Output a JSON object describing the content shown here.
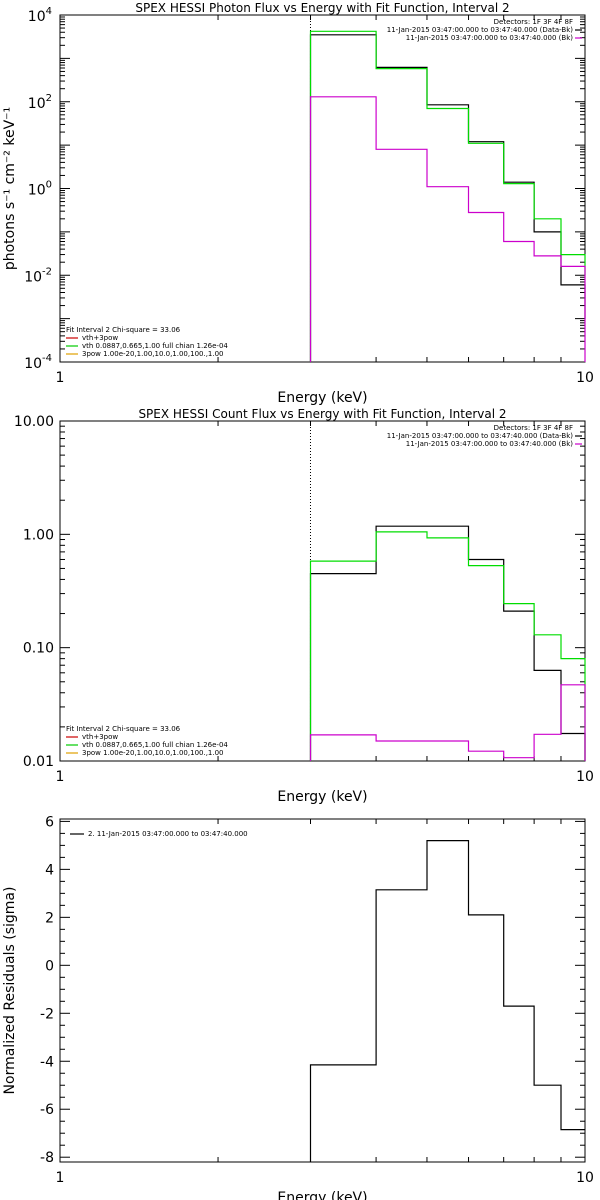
{
  "chart_data": [
    {
      "type": "line",
      "title": "SPEX HESSI Photon Flux vs Energy with Fit Function, Interval 2",
      "xlabel": "Energy (keV)",
      "ylabel": "photons s⁻¹ cm⁻² keV⁻¹",
      "xscale": "log",
      "yscale": "log",
      "xlim": [
        1,
        10
      ],
      "ylim": [
        0.0001,
        10000
      ],
      "x_ticks": [
        {
          "v": 1,
          "label": "1"
        },
        {
          "v": 10,
          "label": "10"
        }
      ],
      "y_ticks": [
        {
          "v": 0.0001,
          "b": "10",
          "e": "-4"
        },
        {
          "v": 0.01,
          "b": "10",
          "e": "-2"
        },
        {
          "v": 1,
          "b": "10",
          "e": "0"
        },
        {
          "v": 100,
          "b": "10",
          "e": "2"
        },
        {
          "v": 10000,
          "b": "10",
          "e": "4"
        }
      ],
      "marker_line_x": 3.0,
      "info_top_right": [
        {
          "text": "Detectors: 1F 3F 4F 8F",
          "color": "#000000"
        },
        {
          "text": "11-Jan-2015 03:47:00.000 to 03:47:40.000 (Data-Bk)",
          "color": "#000000"
        },
        {
          "text": "11-Jan-2015 03:47:00.000 to 03:47:40.000 (Bk)",
          "color": "#cc00cc"
        }
      ],
      "legend_bottom_left": [
        {
          "text": "Fit Interval 2   Chi-square = 33.06",
          "color": "#000000"
        },
        {
          "text": "vth+3pow",
          "color": "#cc0000"
        },
        {
          "text": "vth 0.0887,0.665,1.00  full chian 1.26e-04",
          "color": "#00cc00"
        },
        {
          "text": "3pow 1.00e-20,1.00,10.0,1.00,100.,1.00",
          "color": "#e0a000"
        }
      ],
      "series": [
        {
          "color": "#000000",
          "edges": [
            3,
            4,
            5,
            6,
            7,
            8,
            9,
            10
          ],
          "values": [
            3500,
            620,
            85,
            12,
            1.4,
            0.1,
            0.006
          ],
          "drop_end": 0.001
        },
        {
          "color": "#00dd00",
          "edges": [
            3,
            4,
            5,
            6,
            7,
            8,
            9,
            10
          ],
          "values": [
            4200,
            580,
            70,
            11,
            1.3,
            0.2,
            0.03
          ],
          "drop_end": 0.01
        },
        {
          "color": "#cc00cc",
          "edges": [
            3,
            4,
            5,
            6,
            7,
            8,
            9,
            10
          ],
          "values": [
            130,
            8,
            1.1,
            0.28,
            0.06,
            0.028,
            0.016
          ],
          "drop_end": 0.0001
        }
      ]
    },
    {
      "type": "line",
      "title": "SPEX HESSI Count Flux vs Energy with Fit Function, Interval 2",
      "xlabel": "Energy (keV)",
      "ylabel": "",
      "xscale": "log",
      "yscale": "log",
      "xlim": [
        1,
        10
      ],
      "ylim": [
        0.01,
        10
      ],
      "x_ticks": [
        {
          "v": 1,
          "label": "1"
        },
        {
          "v": 10,
          "label": "10"
        }
      ],
      "y_ticks": [
        {
          "v": 0.01,
          "label": "0.01"
        },
        {
          "v": 0.1,
          "label": "0.10"
        },
        {
          "v": 1,
          "label": "1.00"
        },
        {
          "v": 10,
          "label": "10.00"
        }
      ],
      "marker_line_x": 3.0,
      "info_top_right": [
        {
          "text": "Detectors: 1F 3F 4F 8F",
          "color": "#000000"
        },
        {
          "text": "11-Jan-2015 03:47:00.000 to 03:47:40.000 (Data-Bk)",
          "color": "#000000"
        },
        {
          "text": "11-Jan-2015 03:47:00.000 to 03:47:40.000 (Bk)",
          "color": "#cc00cc"
        }
      ],
      "legend_bottom_left": [
        {
          "text": "Fit Interval 2   Chi-square = 33.06",
          "color": "#000000"
        },
        {
          "text": "vth+3pow",
          "color": "#cc0000"
        },
        {
          "text": "vth 0.0887,0.665,1.00  full chian 1.26e-04",
          "color": "#00cc00"
        },
        {
          "text": "3pow 1.00e-20,1.00,10.0,1.00,100.,1.00",
          "color": "#e0a000"
        }
      ],
      "series": [
        {
          "color": "#000000",
          "edges": [
            3,
            4,
            5,
            6,
            7,
            8,
            9,
            10
          ],
          "values": [
            0.45,
            1.18,
            1.18,
            0.6,
            0.21,
            0.063,
            0.0175
          ],
          "drop_end": 0.01
        },
        {
          "color": "#00dd00",
          "edges": [
            3,
            4,
            5,
            6,
            7,
            8,
            9,
            10
          ],
          "values": [
            0.58,
            1.05,
            0.93,
            0.53,
            0.245,
            0.13,
            0.08
          ],
          "drop_end": 0.01
        },
        {
          "color": "#cc00cc",
          "edges": [
            3,
            4,
            5,
            6,
            7,
            8,
            9,
            10
          ],
          "values": [
            0.017,
            0.015,
            0.015,
            0.0122,
            0.0107,
            0.0172,
            0.047
          ],
          "drop_end": 0.01
        }
      ]
    },
    {
      "type": "line",
      "title": "",
      "xlabel": "Energy (keV)",
      "ylabel": "Normalized Residuals (sigma)",
      "xscale": "log",
      "yscale": "linear",
      "xlim": [
        1,
        10
      ],
      "ylim": [
        -8.2,
        6.1
      ],
      "x_ticks": [
        {
          "v": 1,
          "label": "1"
        },
        {
          "v": 10,
          "label": "10"
        }
      ],
      "y_ticks": [
        {
          "v": -8,
          "label": "-8"
        },
        {
          "v": -6,
          "label": "-6"
        },
        {
          "v": -4,
          "label": "-4"
        },
        {
          "v": -2,
          "label": "-2"
        },
        {
          "v": 0,
          "label": "0"
        },
        {
          "v": 2,
          "label": "2"
        },
        {
          "v": 4,
          "label": "4"
        },
        {
          "v": 6,
          "label": "6"
        }
      ],
      "marker_line_x": null,
      "info_top_right": [],
      "legend_bottom_left": [],
      "legend_top_left": [
        {
          "text": "2. 11-Jan-2015 03:47:00.000 to 03:47:40.000",
          "color": "#000000"
        }
      ],
      "series": [
        {
          "color": "#000000",
          "edges": [
            3,
            4,
            5,
            6,
            7,
            8,
            9,
            10
          ],
          "values": [
            -4.15,
            3.15,
            5.2,
            2.1,
            -1.7,
            -5.0,
            -6.85
          ],
          "drop_start": -8.2,
          "drop_end": null
        }
      ]
    }
  ]
}
